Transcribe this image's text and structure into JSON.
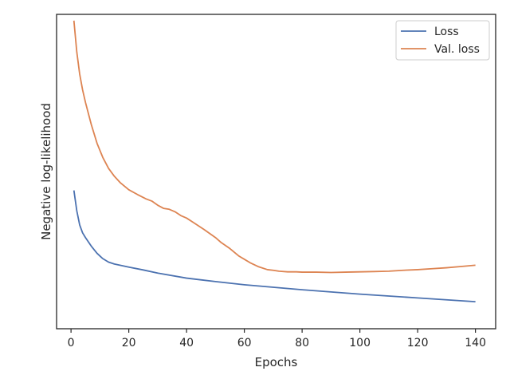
{
  "chart_data": {
    "type": "line",
    "title": "",
    "xlabel": "Epochs",
    "ylabel": "Negative log-likelihood",
    "xlim": [
      -5,
      147
    ],
    "ylim": [
      0,
      100
    ],
    "x_ticks": [
      0,
      20,
      40,
      60,
      80,
      100,
      120,
      140
    ],
    "y_ticks_shown": false,
    "grid": false,
    "legend_position": "top-right",
    "series": [
      {
        "name": "Loss",
        "color": "#4c72b0",
        "x": [
          1,
          2,
          3,
          4,
          5,
          7,
          9,
          11,
          13,
          15,
          20,
          25,
          30,
          40,
          50,
          60,
          70,
          80,
          90,
          100,
          110,
          120,
          130,
          140
        ],
        "y": [
          44,
          37.5,
          33,
          30.5,
          29,
          26.3,
          24,
          22.3,
          21.2,
          20.6,
          19.6,
          18.7,
          17.7,
          16.1,
          15,
          14,
          13.2,
          12.4,
          11.7,
          11,
          10.4,
          9.8,
          9.2,
          8.6
        ]
      },
      {
        "name": "Val. loss",
        "color": "#dd8452",
        "x": [
          1,
          2,
          3,
          4,
          5,
          7,
          9,
          11,
          13,
          15,
          17,
          20,
          23,
          26,
          28,
          30,
          32,
          34,
          36,
          38,
          40,
          42,
          44,
          46,
          48,
          50,
          52,
          55,
          58,
          60,
          62,
          65,
          68,
          70,
          72,
          75,
          78,
          80,
          85,
          90,
          95,
          100,
          105,
          110,
          115,
          120,
          125,
          130,
          135,
          140
        ],
        "y": [
          98,
          88,
          81,
          76,
          72,
          65,
          59,
          54.5,
          51,
          48.5,
          46.5,
          44.2,
          42.7,
          41.3,
          40.6,
          39.3,
          38.3,
          38,
          37.2,
          36,
          35.2,
          34,
          32.8,
          31.6,
          30.3,
          29,
          27.4,
          25.5,
          23.2,
          22.1,
          21,
          19.7,
          18.8,
          18.6,
          18.3,
          18.1,
          18.1,
          18.0,
          18.0,
          17.9,
          18.0,
          18.1,
          18.2,
          18.3,
          18.6,
          18.8,
          19.1,
          19.4,
          19.8,
          20.2
        ]
      }
    ]
  }
}
